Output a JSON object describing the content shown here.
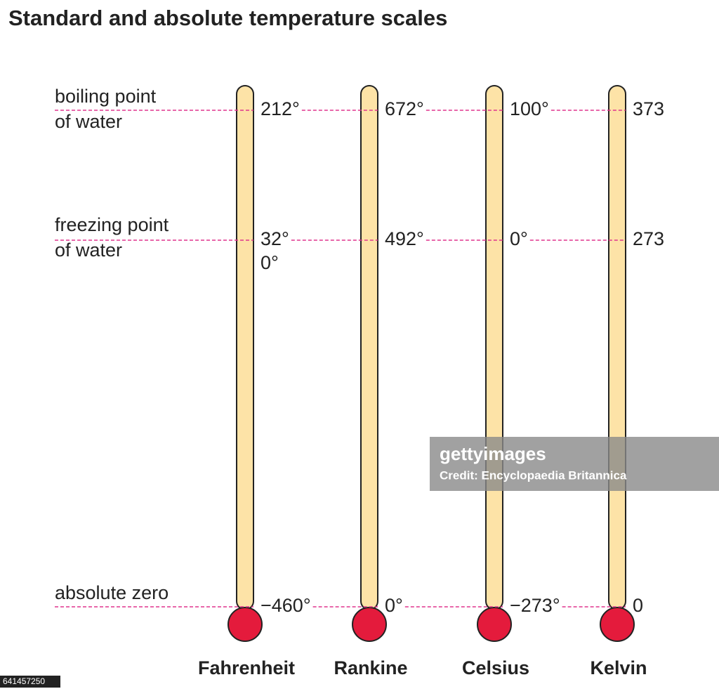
{
  "title": "Standard and absolute temperature scales",
  "references": [
    {
      "lines": [
        "boiling point",
        "of water"
      ]
    },
    {
      "lines": [
        "freezing point",
        "of water"
      ]
    },
    {
      "lines": [
        "absolute zero"
      ]
    }
  ],
  "thermometers": [
    {
      "name": "Fahrenheit",
      "labels": [
        "212°",
        "32°",
        "−460°"
      ],
      "extra": "0°"
    },
    {
      "name": "Rankine",
      "labels": [
        "672°",
        "492°",
        "0°"
      ]
    },
    {
      "name": "Celsius",
      "labels": [
        "100°",
        "0°",
        "−273°"
      ]
    },
    {
      "name": "Kelvin",
      "labels": [
        "373",
        "273",
        "0"
      ]
    }
  ],
  "watermark": {
    "brand": "gettyimages",
    "credit": "Credit: Encyclopaedia Britannica",
    "id": "641457250"
  }
}
